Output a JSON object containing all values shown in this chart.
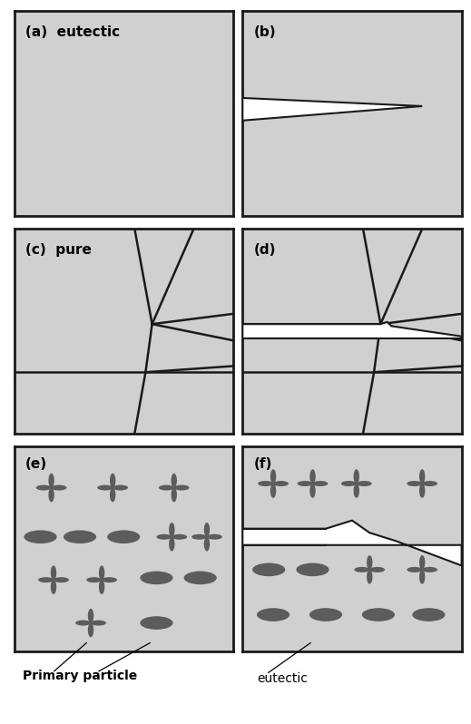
{
  "bg_color": "#d0d0d0",
  "border_color": "#1a1a1a",
  "figure_bg": "#ffffff",
  "panel_labels": [
    "(a)  eutectic",
    "(b)",
    "(c)  pure",
    "(d)",
    "(e)",
    "(f)"
  ],
  "annotation_primary": "Primary particle",
  "annotation_eutectic": "eutectic",
  "label_fontsize": 11,
  "annot_fontsize": 10,
  "particle_color": "#5c5c5c",
  "crack_color": "#ffffff",
  "grain_lw": 1.8,
  "crack_lw": 1.5
}
